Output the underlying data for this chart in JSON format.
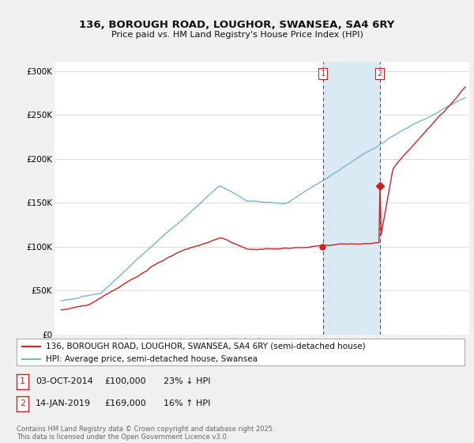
{
  "title_line1": "136, BOROUGH ROAD, LOUGHOR, SWANSEA, SA4 6RY",
  "title_line2": "Price paid vs. HM Land Registry's House Price Index (HPI)",
  "background_color": "#f0f0f0",
  "plot_bg_color": "#ffffff",
  "sale1": {
    "date": "03-OCT-2014",
    "price": 100000,
    "label": "1",
    "pct": "23% ↓ HPI"
  },
  "sale2": {
    "date": "14-JAN-2019",
    "price": 169000,
    "label": "2",
    "pct": "16% ↑ HPI"
  },
  "legend_line1": "136, BOROUGH ROAD, LOUGHOR, SWANSEA, SA4 6RY (semi-detached house)",
  "legend_line2": "HPI: Average price, semi-detached house, Swansea",
  "footer": "Contains HM Land Registry data © Crown copyright and database right 2025.\nThis data is licensed under the Open Government Licence v3.0.",
  "hpi_color": "#7ab3d4",
  "price_color": "#cc2222",
  "shaded_color": "#daeaf5",
  "dashed_line_color": "#cc2222",
  "ylim": [
    0,
    310000
  ],
  "yticks": [
    0,
    50000,
    100000,
    150000,
    200000,
    250000,
    300000
  ],
  "sale1_year": 2014.75,
  "sale2_year": 2019.04
}
